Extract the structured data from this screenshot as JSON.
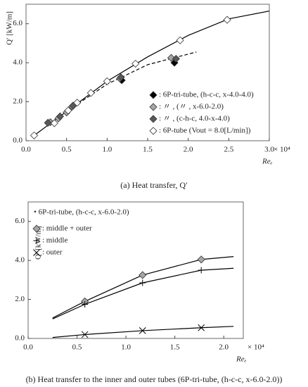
{
  "chart_data": [
    {
      "type": "scatter",
      "x_label": "Reₑ",
      "y_label": "Q′ [kW/m]",
      "x_multiplier": "× 10⁴",
      "caption": "(a) Heat transfer, Q′",
      "xlim": [
        0,
        3.0
      ],
      "ylim": [
        0,
        7.0
      ],
      "xticks": [
        {
          "value": 0,
          "label": "0.0"
        },
        {
          "value": 0.5,
          "label": "0.5"
        },
        {
          "value": 1.0,
          "label": "1.0"
        },
        {
          "value": 1.5,
          "label": "1.5"
        },
        {
          "value": 2.0,
          "label": "2.0"
        },
        {
          "value": 2.5,
          "label": "2.5"
        },
        {
          "value": 3.0,
          "label": "3.0"
        }
      ],
      "yticks": [
        {
          "value": 0,
          "label": "0.0"
        },
        {
          "value": 2.0,
          "label": "2.0"
        },
        {
          "value": 4.0,
          "label": "4.0"
        },
        {
          "value": 6.0,
          "label": "6.0"
        }
      ],
      "legend": "lower right",
      "series": [
        {
          "name": ": 6P-tri-tube, (h-c-c, x-4.0-4.0)",
          "marker": "diamond",
          "color": "#000000",
          "x": [
            1.18,
            1.83
          ],
          "values": [
            3.1,
            4.0
          ]
        },
        {
          "name": ":  〃 , (〃 , x-6.0-2.0)",
          "marker": "diamond",
          "color": "#a6a6a6",
          "x": [
            0.3,
            0.4,
            0.5,
            0.57,
            1.16,
            1.79
          ],
          "values": [
            0.95,
            1.15,
            1.45,
            1.75,
            3.2,
            4.25
          ]
        },
        {
          "name": ":  〃 , (c-h-c, 4.0-x-4.0)",
          "marker": "diamond",
          "color": "#595959",
          "x": [
            0.27,
            0.42,
            0.58,
            1.17,
            1.85
          ],
          "values": [
            0.92,
            1.25,
            1.8,
            3.25,
            4.2
          ]
        },
        {
          "name": ": 6P-tube (Vout = 8.0[L/min])",
          "marker": "diamond",
          "color": "#ffffff",
          "x": [
            0.1,
            0.35,
            0.52,
            0.63,
            0.8,
            1.0,
            1.35,
            1.9,
            2.48
          ],
          "values": [
            0.27,
            0.9,
            1.55,
            1.95,
            2.45,
            3.05,
            3.95,
            5.15,
            6.2
          ]
        }
      ],
      "curves": [
        {
          "dash": false,
          "x": [
            0.1,
            0.5,
            1.0,
            1.5,
            2.0,
            2.5,
            3.0
          ],
          "values": [
            0.27,
            1.5,
            3.05,
            4.3,
            5.4,
            6.25,
            6.65
          ]
        },
        {
          "dash": true,
          "x": [
            0.3,
            0.5,
            1.0,
            1.5,
            2.1
          ],
          "values": [
            0.9,
            1.5,
            2.9,
            3.9,
            4.55
          ]
        }
      ]
    },
    {
      "type": "scatter",
      "x_label": "Reₑ",
      "y_label": "Q′ [kW/m]",
      "x_multiplier": "× 10⁴",
      "caption": "(b) Heat transfer to the inner and outer tubes (6P-tri-tube, (h-c-c, x-6.0-2.0))",
      "legend_title": "• 6P-tri-tube, (h-c-c, x-6.0-2.0)",
      "xlim": [
        0,
        2.2
      ],
      "ylim": [
        0,
        7.0
      ],
      "xticks": [
        {
          "value": 0,
          "label": "0.0"
        },
        {
          "value": 0.5,
          "label": "0.5"
        },
        {
          "value": 1.0,
          "label": "1.0"
        },
        {
          "value": 1.5,
          "label": "1.5"
        },
        {
          "value": 2.0,
          "label": "2.0"
        }
      ],
      "yticks": [
        {
          "value": 0,
          "label": "0.0"
        },
        {
          "value": 2.0,
          "label": "2.0"
        },
        {
          "value": 4.0,
          "label": "4.0"
        },
        {
          "value": 6.0,
          "label": "6.0"
        }
      ],
      "legend": "upper left",
      "series": [
        {
          "name": ": middle + outer",
          "marker": "diamond",
          "color": "#a6a6a6",
          "x": [
            0.58,
            1.17,
            1.77
          ],
          "values": [
            1.9,
            3.25,
            4.05
          ]
        },
        {
          "name": ": middle",
          "marker": "plus",
          "color": "#000000",
          "x": [
            0.58,
            1.17,
            1.77
          ],
          "values": [
            1.75,
            2.85,
            3.5
          ]
        },
        {
          "name": ": outer",
          "marker": "cross",
          "color": "#000000",
          "x": [
            0.58,
            1.17,
            1.77
          ],
          "values": [
            0.2,
            0.4,
            0.55
          ]
        }
      ],
      "curves": [
        {
          "dash": false,
          "x": [
            0.25,
            0.58,
            1.17,
            1.77,
            2.1
          ],
          "values": [
            1.05,
            1.9,
            3.25,
            4.05,
            4.2
          ]
        },
        {
          "dash": false,
          "x": [
            0.25,
            0.58,
            1.17,
            1.77,
            2.1
          ],
          "values": [
            1.0,
            1.75,
            2.85,
            3.5,
            3.6
          ]
        },
        {
          "dash": false,
          "x": [
            0.25,
            0.58,
            1.17,
            1.77,
            2.1
          ],
          "values": [
            0.05,
            0.2,
            0.4,
            0.55,
            0.62
          ]
        }
      ]
    }
  ]
}
